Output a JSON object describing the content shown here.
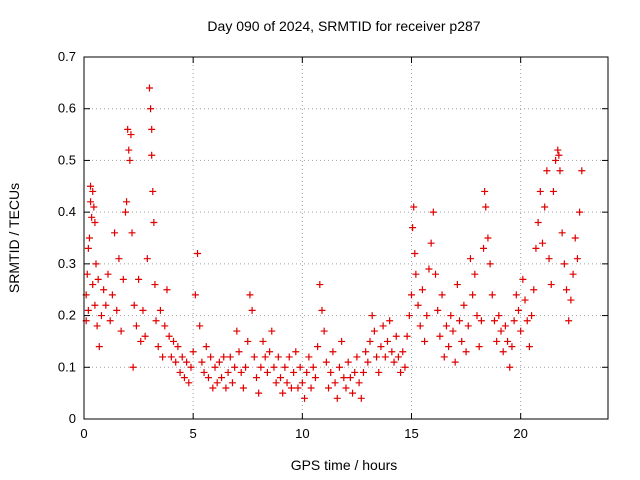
{
  "chart_data": {
    "type": "scatter",
    "title": "Day 090 of 2024, SRMTID for receiver p287",
    "xlabel": "GPS time / hours",
    "ylabel": "SRMTID / TECUs",
    "xlim": [
      0,
      24
    ],
    "ylim": [
      0,
      0.7
    ],
    "xticks": [
      0,
      5,
      10,
      15,
      20
    ],
    "xtick_labels": [
      "0",
      "5",
      "10",
      "15",
      "20"
    ],
    "yticks": [
      0,
      0.1,
      0.2,
      0.3,
      0.4,
      0.5,
      0.6,
      0.7
    ],
    "ytick_labels": [
      "0",
      "0.1",
      "0.2",
      "0.3",
      "0.4",
      "0.5",
      "0.6",
      "0.7"
    ],
    "grid": true,
    "marker": "+",
    "series": [
      {
        "name": "SRMTID",
        "color": "#e00000",
        "points": [
          [
            0.1,
            0.24
          ],
          [
            0.1,
            0.19
          ],
          [
            0.15,
            0.28
          ],
          [
            0.2,
            0.33
          ],
          [
            0.2,
            0.21
          ],
          [
            0.25,
            0.35
          ],
          [
            0.3,
            0.45
          ],
          [
            0.3,
            0.42
          ],
          [
            0.35,
            0.39
          ],
          [
            0.4,
            0.44
          ],
          [
            0.4,
            0.26
          ],
          [
            0.45,
            0.41
          ],
          [
            0.5,
            0.38
          ],
          [
            0.5,
            0.22
          ],
          [
            0.55,
            0.3
          ],
          [
            0.6,
            0.18
          ],
          [
            0.65,
            0.27
          ],
          [
            0.7,
            0.14
          ],
          [
            0.8,
            0.2
          ],
          [
            0.9,
            0.25
          ],
          [
            1.0,
            0.22
          ],
          [
            1.1,
            0.28
          ],
          [
            1.2,
            0.19
          ],
          [
            1.3,
            0.24
          ],
          [
            1.4,
            0.36
          ],
          [
            1.5,
            0.21
          ],
          [
            1.6,
            0.31
          ],
          [
            1.7,
            0.17
          ],
          [
            1.8,
            0.27
          ],
          [
            1.9,
            0.4
          ],
          [
            1.95,
            0.42
          ],
          [
            2.0,
            0.56
          ],
          [
            2.05,
            0.52
          ],
          [
            2.1,
            0.5
          ],
          [
            2.15,
            0.55
          ],
          [
            2.2,
            0.36
          ],
          [
            2.25,
            0.1
          ],
          [
            2.3,
            0.22
          ],
          [
            2.4,
            0.18
          ],
          [
            2.5,
            0.27
          ],
          [
            2.6,
            0.15
          ],
          [
            2.7,
            0.21
          ],
          [
            2.8,
            0.16
          ],
          [
            2.9,
            0.31
          ],
          [
            3.0,
            0.64
          ],
          [
            3.05,
            0.6
          ],
          [
            3.1,
            0.56
          ],
          [
            3.1,
            0.51
          ],
          [
            3.15,
            0.44
          ],
          [
            3.2,
            0.38
          ],
          [
            3.25,
            0.26
          ],
          [
            3.3,
            0.19
          ],
          [
            3.4,
            0.14
          ],
          [
            3.5,
            0.21
          ],
          [
            3.6,
            0.12
          ],
          [
            3.7,
            0.18
          ],
          [
            3.8,
            0.25
          ],
          [
            3.9,
            0.16
          ],
          [
            4.0,
            0.12
          ],
          [
            4.1,
            0.15
          ],
          [
            4.2,
            0.11
          ],
          [
            4.3,
            0.14
          ],
          [
            4.4,
            0.09
          ],
          [
            4.5,
            0.12
          ],
          [
            4.6,
            0.08
          ],
          [
            4.7,
            0.11
          ],
          [
            4.8,
            0.07
          ],
          [
            4.9,
            0.1
          ],
          [
            5.0,
            0.13
          ],
          [
            5.1,
            0.24
          ],
          [
            5.2,
            0.32
          ],
          [
            5.3,
            0.18
          ],
          [
            5.4,
            0.11
          ],
          [
            5.5,
            0.09
          ],
          [
            5.6,
            0.14
          ],
          [
            5.7,
            0.08
          ],
          [
            5.8,
            0.12
          ],
          [
            5.9,
            0.06
          ],
          [
            6.0,
            0.1
          ],
          [
            6.1,
            0.07
          ],
          [
            6.2,
            0.11
          ],
          [
            6.3,
            0.08
          ],
          [
            6.4,
            0.12
          ],
          [
            6.5,
            0.06
          ],
          [
            6.6,
            0.09
          ],
          [
            6.7,
            0.12
          ],
          [
            6.8,
            0.07
          ],
          [
            6.9,
            0.1
          ],
          [
            7.0,
            0.17
          ],
          [
            7.1,
            0.13
          ],
          [
            7.2,
            0.09
          ],
          [
            7.3,
            0.06
          ],
          [
            7.4,
            0.1
          ],
          [
            7.5,
            0.15
          ],
          [
            7.6,
            0.24
          ],
          [
            7.7,
            0.21
          ],
          [
            7.8,
            0.12
          ],
          [
            7.9,
            0.08
          ],
          [
            8.0,
            0.05
          ],
          [
            8.1,
            0.1
          ],
          [
            8.2,
            0.15
          ],
          [
            8.3,
            0.12
          ],
          [
            8.4,
            0.09
          ],
          [
            8.5,
            0.13
          ],
          [
            8.6,
            0.17
          ],
          [
            8.7,
            0.1
          ],
          [
            8.8,
            0.07
          ],
          [
            8.9,
            0.12
          ],
          [
            9.0,
            0.08
          ],
          [
            9.1,
            0.05
          ],
          [
            9.2,
            0.1
          ],
          [
            9.3,
            0.07
          ],
          [
            9.4,
            0.12
          ],
          [
            9.5,
            0.06
          ],
          [
            9.6,
            0.09
          ],
          [
            9.7,
            0.13
          ],
          [
            9.8,
            0.06
          ],
          [
            9.9,
            0.1
          ],
          [
            10.0,
            0.07
          ],
          [
            10.1,
            0.04
          ],
          [
            10.2,
            0.09
          ],
          [
            10.3,
            0.12
          ],
          [
            10.4,
            0.06
          ],
          [
            10.5,
            0.1
          ],
          [
            10.6,
            0.08
          ],
          [
            10.7,
            0.14
          ],
          [
            10.8,
            0.26
          ],
          [
            10.9,
            0.21
          ],
          [
            11.0,
            0.17
          ],
          [
            11.1,
            0.11
          ],
          [
            11.2,
            0.06
          ],
          [
            11.3,
            0.09
          ],
          [
            11.4,
            0.13
          ],
          [
            11.5,
            0.07
          ],
          [
            11.6,
            0.04
          ],
          [
            11.7,
            0.1
          ],
          [
            11.8,
            0.15
          ],
          [
            11.9,
            0.08
          ],
          [
            12.0,
            0.06
          ],
          [
            12.1,
            0.11
          ],
          [
            12.2,
            0.08
          ],
          [
            12.3,
            0.05
          ],
          [
            12.4,
            0.09
          ],
          [
            12.5,
            0.12
          ],
          [
            12.6,
            0.07
          ],
          [
            12.7,
            0.04
          ],
          [
            12.8,
            0.09
          ],
          [
            12.9,
            0.13
          ],
          [
            13.0,
            0.11
          ],
          [
            13.1,
            0.15
          ],
          [
            13.2,
            0.2
          ],
          [
            13.3,
            0.17
          ],
          [
            13.4,
            0.12
          ],
          [
            13.5,
            0.09
          ],
          [
            13.6,
            0.14
          ],
          [
            13.7,
            0.18
          ],
          [
            13.8,
            0.12
          ],
          [
            13.9,
            0.15
          ],
          [
            14.0,
            0.19
          ],
          [
            14.1,
            0.13
          ],
          [
            14.2,
            0.11
          ],
          [
            14.3,
            0.16
          ],
          [
            14.4,
            0.12
          ],
          [
            14.5,
            0.09
          ],
          [
            14.6,
            0.13
          ],
          [
            14.7,
            0.1
          ],
          [
            14.8,
            0.16
          ],
          [
            14.9,
            0.2
          ],
          [
            15.0,
            0.24
          ],
          [
            15.05,
            0.37
          ],
          [
            15.1,
            0.41
          ],
          [
            15.15,
            0.32
          ],
          [
            15.2,
            0.28
          ],
          [
            15.3,
            0.22
          ],
          [
            15.4,
            0.18
          ],
          [
            15.5,
            0.25
          ],
          [
            15.6,
            0.15
          ],
          [
            15.7,
            0.2
          ],
          [
            15.8,
            0.29
          ],
          [
            15.9,
            0.34
          ],
          [
            16.0,
            0.4
          ],
          [
            16.1,
            0.28
          ],
          [
            16.2,
            0.21
          ],
          [
            16.3,
            0.16
          ],
          [
            16.4,
            0.24
          ],
          [
            16.5,
            0.12
          ],
          [
            16.6,
            0.18
          ],
          [
            16.7,
            0.14
          ],
          [
            16.8,
            0.2
          ],
          [
            16.9,
            0.17
          ],
          [
            17.0,
            0.11
          ],
          [
            17.1,
            0.26
          ],
          [
            17.2,
            0.19
          ],
          [
            17.3,
            0.15
          ],
          [
            17.4,
            0.22
          ],
          [
            17.5,
            0.13
          ],
          [
            17.6,
            0.18
          ],
          [
            17.7,
            0.31
          ],
          [
            17.8,
            0.24
          ],
          [
            17.9,
            0.28
          ],
          [
            18.0,
            0.2
          ],
          [
            18.1,
            0.14
          ],
          [
            18.2,
            0.19
          ],
          [
            18.3,
            0.33
          ],
          [
            18.35,
            0.44
          ],
          [
            18.4,
            0.41
          ],
          [
            18.5,
            0.35
          ],
          [
            18.6,
            0.3
          ],
          [
            18.7,
            0.24
          ],
          [
            18.8,
            0.19
          ],
          [
            18.9,
            0.15
          ],
          [
            19.0,
            0.2
          ],
          [
            19.1,
            0.17
          ],
          [
            19.2,
            0.13
          ],
          [
            19.3,
            0.18
          ],
          [
            19.4,
            0.15
          ],
          [
            19.5,
            0.1
          ],
          [
            19.6,
            0.14
          ],
          [
            19.7,
            0.19
          ],
          [
            19.8,
            0.24
          ],
          [
            19.9,
            0.21
          ],
          [
            20.0,
            0.17
          ],
          [
            20.1,
            0.27
          ],
          [
            20.2,
            0.23
          ],
          [
            20.3,
            0.19
          ],
          [
            20.4,
            0.14
          ],
          [
            20.5,
            0.2
          ],
          [
            20.6,
            0.25
          ],
          [
            20.7,
            0.33
          ],
          [
            20.8,
            0.38
          ],
          [
            20.9,
            0.44
          ],
          [
            21.0,
            0.34
          ],
          [
            21.1,
            0.41
          ],
          [
            21.2,
            0.48
          ],
          [
            21.3,
            0.31
          ],
          [
            21.4,
            0.26
          ],
          [
            21.5,
            0.44
          ],
          [
            21.6,
            0.5
          ],
          [
            21.7,
            0.52
          ],
          [
            21.75,
            0.51
          ],
          [
            21.8,
            0.48
          ],
          [
            21.9,
            0.36
          ],
          [
            22.0,
            0.3
          ],
          [
            22.1,
            0.25
          ],
          [
            22.2,
            0.19
          ],
          [
            22.3,
            0.23
          ],
          [
            22.4,
            0.28
          ],
          [
            22.5,
            0.35
          ],
          [
            22.6,
            0.31
          ],
          [
            22.7,
            0.4
          ],
          [
            22.8,
            0.48
          ]
        ]
      }
    ]
  }
}
